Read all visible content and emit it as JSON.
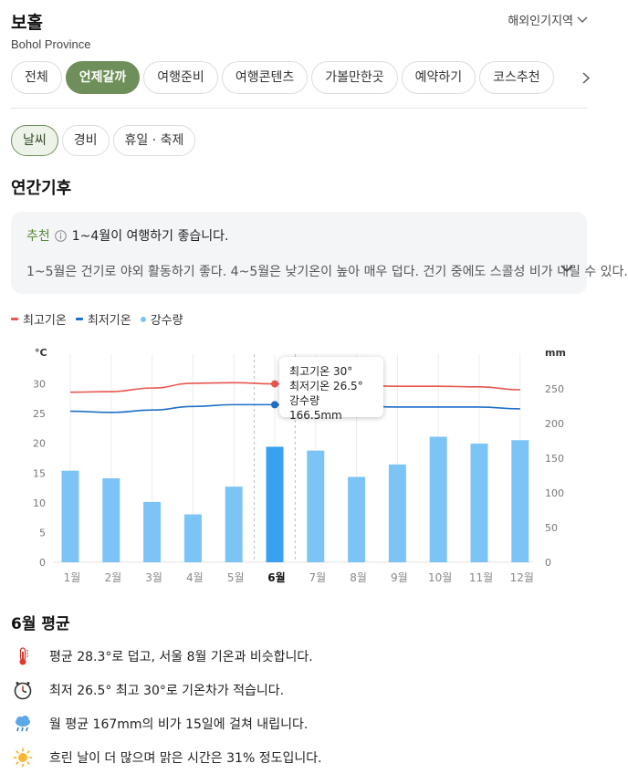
{
  "header": {
    "title": "보홀",
    "subtitle": "Bohol Province",
    "region_link": "해외인기지역"
  },
  "main_tabs": [
    {
      "label": "전체"
    },
    {
      "label": "언제갈까",
      "active": true
    },
    {
      "label": "여행준비"
    },
    {
      "label": "여행콘텐츠"
    },
    {
      "label": "가볼만한곳"
    },
    {
      "label": "예약하기"
    },
    {
      "label": "코스추천"
    }
  ],
  "sub_tabs": [
    {
      "label": "날씨",
      "active": true
    },
    {
      "label": "경비"
    },
    {
      "label": "휴일 · 축제"
    }
  ],
  "section_title": "연간기후",
  "recommendation": {
    "label": "추천",
    "headline": "1~4월이 여행하기 좋습니다.",
    "detail": "1~5월은 건기로 야외 활동하기 좋다. 4~5월은 낮기온이 높아 매우 덥다. 건기 중에도 스콜성 비가 내릴 수 있다."
  },
  "legend": {
    "max_temp": "최고기온",
    "min_temp": "최저기온",
    "rain": "강수량"
  },
  "tooltip": {
    "line1": "최고기온 30°",
    "line2": "최저기온 26.5°",
    "line3": "강수량 166.5mm"
  },
  "colors": {
    "accent": "#6f8f5a",
    "max_line": "#e8564f",
    "min_line": "#1f6fc7",
    "bar": "#7cc4f5",
    "bar_selected": "#3aa0f0"
  },
  "chart_data": {
    "type": "bar",
    "categories": [
      "1월",
      "2월",
      "3월",
      "4월",
      "5월",
      "6월",
      "7월",
      "8월",
      "9월",
      "10월",
      "11월",
      "12월"
    ],
    "selected_index": 5,
    "left_axis": {
      "unit": "°C",
      "ticks": [
        0,
        5,
        10,
        15,
        20,
        25,
        30
      ],
      "range": [
        0,
        35
      ]
    },
    "right_axis": {
      "unit": "mm",
      "ticks": [
        0,
        50,
        100,
        150,
        200,
        250
      ],
      "range": [
        0,
        300
      ]
    },
    "series": [
      {
        "name": "최고기온",
        "kind": "line",
        "axis": "left",
        "values": [
          28.6,
          28.7,
          29.3,
          30.1,
          30.2,
          30.0,
          29.9,
          29.8,
          29.6,
          29.6,
          29.5,
          29.0
        ]
      },
      {
        "name": "최저기온",
        "kind": "line",
        "axis": "left",
        "values": [
          25.4,
          25.2,
          25.6,
          26.2,
          26.5,
          26.5,
          26.4,
          26.3,
          26.1,
          26.1,
          26.1,
          25.8
        ]
      },
      {
        "name": "강수량",
        "kind": "bar",
        "axis": "right",
        "values": [
          132,
          121,
          87,
          69,
          109,
          166.5,
          161,
          123,
          141,
          181,
          171,
          176
        ]
      }
    ],
    "grid": "vertical"
  },
  "monthly_avg": {
    "title": "6월 평균",
    "items": [
      {
        "icon": "thermometer-icon",
        "text": "평균 28.3°로 덥고, 서울 8월 기온과 비슷합니다."
      },
      {
        "icon": "clock-icon",
        "text": "최저 26.5° 최고 30°로 기온차가 적습니다."
      },
      {
        "icon": "rain-cloud-icon",
        "text": "월 평균 167mm의 비가 15일에 걸쳐 내립니다."
      },
      {
        "icon": "sun-icon",
        "text": "흐린 날이 더 많으며 맑은 시간은 31% 정도입니다."
      }
    ]
  }
}
